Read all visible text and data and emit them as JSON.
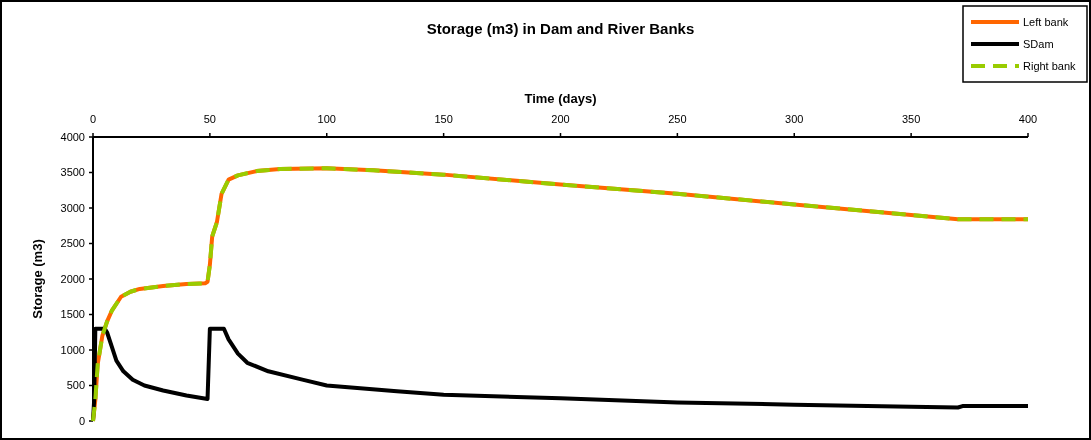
{
  "chart_data": {
    "type": "line",
    "title": "Storage (m3) in Dam and River Banks",
    "xlabel": "Time (days)",
    "ylabel": "Storage (m3)",
    "xlim": [
      0,
      400
    ],
    "xticks": [
      0,
      50,
      100,
      150,
      200,
      250,
      300,
      350,
      400
    ],
    "ylim": [
      0,
      4000
    ],
    "yticks": [
      0,
      500,
      1000,
      1500,
      2000,
      2500,
      3000,
      3500,
      4000
    ],
    "grid": false,
    "legend": "top right",
    "marker": "none",
    "series": [
      {
        "name": "Left bank",
        "color": "#ff6600",
        "line_style": "solid",
        "x": [
          0,
          1,
          2,
          4,
          6,
          8,
          12,
          16,
          20,
          30,
          40,
          48,
          49,
          50,
          51,
          53,
          55,
          58,
          62,
          70,
          80,
          100,
          120,
          150,
          200,
          250,
          300,
          350,
          370,
          400
        ],
        "values": [
          0,
          300,
          800,
          1200,
          1400,
          1550,
          1750,
          1820,
          1860,
          1900,
          1930,
          1940,
          1960,
          2200,
          2600,
          2800,
          3200,
          3400,
          3460,
          3520,
          3550,
          3560,
          3530,
          3470,
          3330,
          3200,
          3050,
          2900,
          2840,
          2840
        ]
      },
      {
        "name": "SDam",
        "color": "#000000",
        "line_style": "solid",
        "x": [
          0,
          0.5,
          1,
          5,
          6,
          8,
          10,
          13,
          17,
          22,
          30,
          40,
          49,
          50,
          56,
          58,
          62,
          66,
          75,
          90,
          100,
          130,
          150,
          200,
          250,
          300,
          350,
          370,
          372,
          400
        ],
        "values": [
          0,
          300,
          1300,
          1300,
          1250,
          1050,
          850,
          700,
          580,
          500,
          430,
          360,
          310,
          1300,
          1300,
          1150,
          950,
          820,
          700,
          580,
          500,
          420,
          370,
          320,
          260,
          230,
          200,
          190,
          210,
          210
        ]
      },
      {
        "name": "Right bank",
        "color": "#99cc00",
        "line_style": "dashed",
        "x": [
          0,
          1,
          2,
          4,
          6,
          8,
          12,
          16,
          20,
          30,
          40,
          48,
          49,
          50,
          51,
          53,
          55,
          58,
          62,
          70,
          80,
          100,
          120,
          150,
          200,
          250,
          300,
          350,
          370,
          400
        ],
        "values": [
          0,
          300,
          800,
          1200,
          1400,
          1550,
          1750,
          1820,
          1860,
          1900,
          1930,
          1940,
          1960,
          2200,
          2600,
          2800,
          3200,
          3400,
          3460,
          3520,
          3550,
          3560,
          3530,
          3470,
          3330,
          3200,
          3050,
          2900,
          2840,
          2840
        ]
      }
    ]
  }
}
